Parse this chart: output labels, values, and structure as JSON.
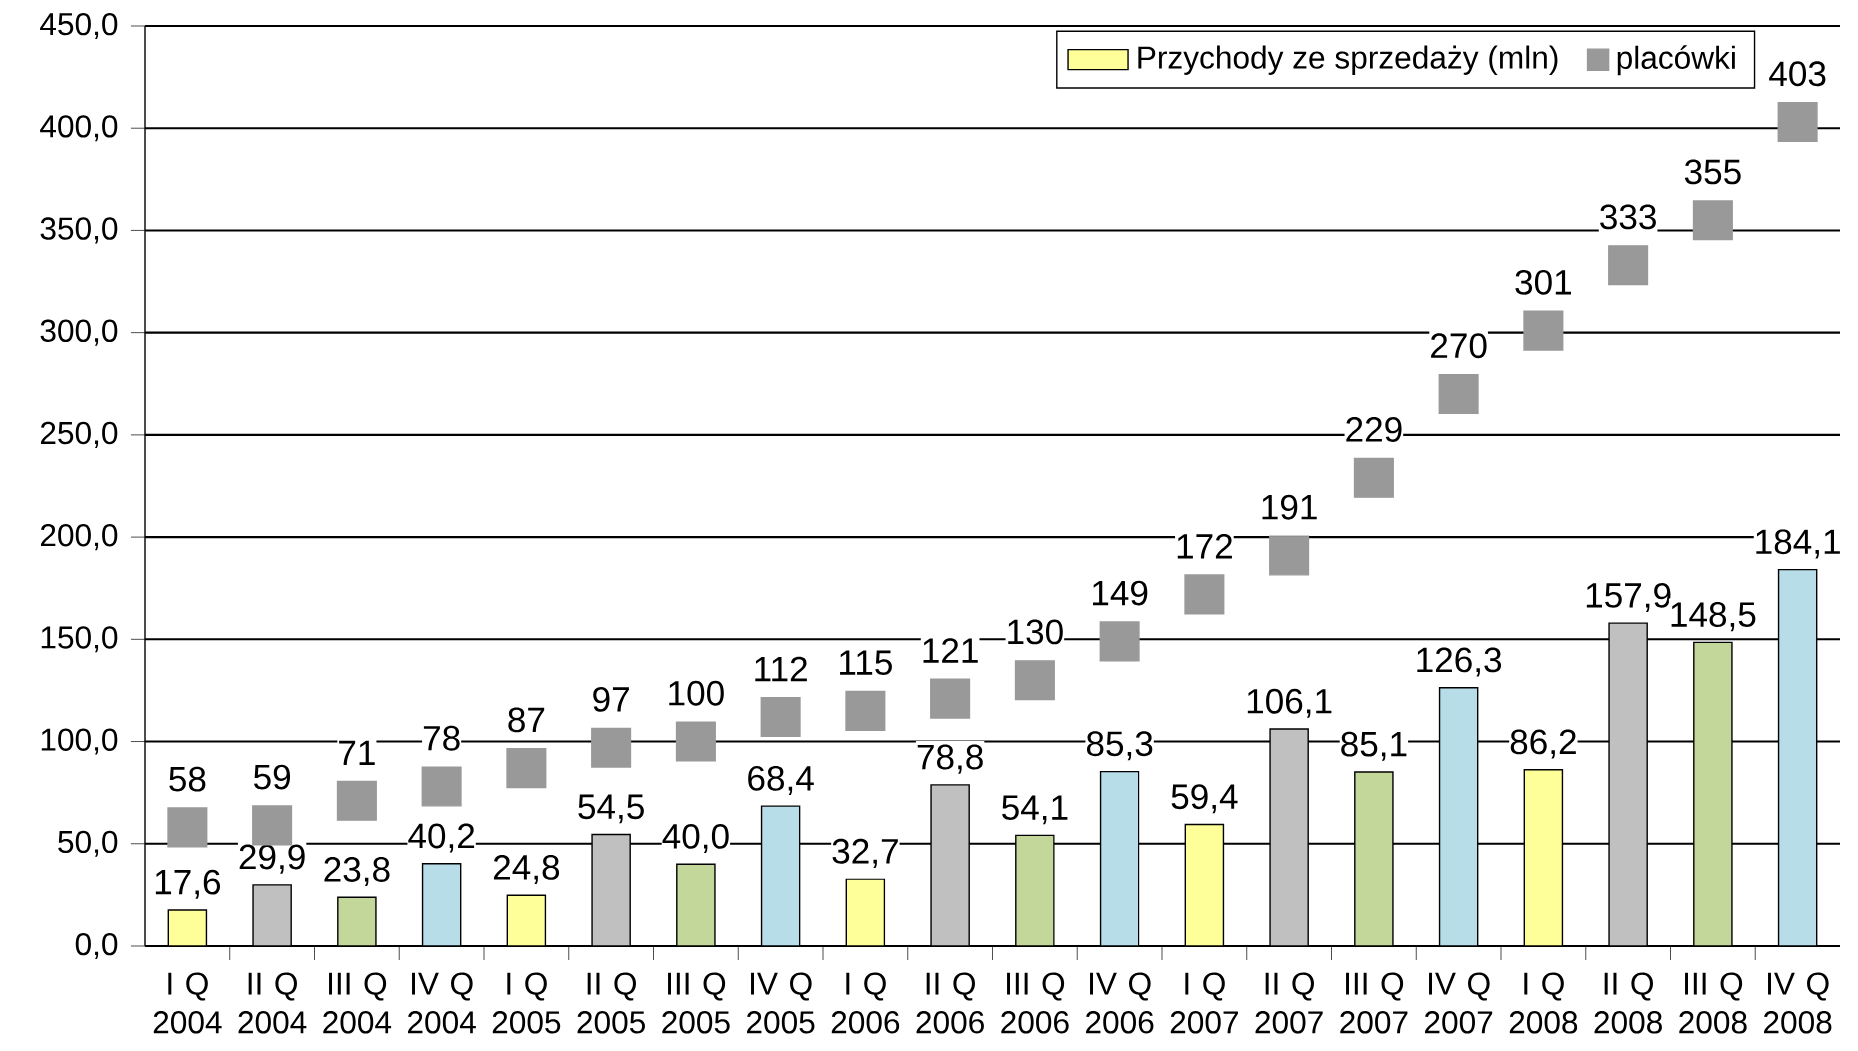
{
  "chart_data": {
    "type": "bar",
    "categories": [
      "I Q 2004",
      "II Q 2004",
      "III Q 2004",
      "IV Q 2004",
      "I Q 2005",
      "II Q 2005",
      "III Q 2005",
      "IV Q 2005",
      "I Q 2006",
      "II Q 2006",
      "III Q 2006",
      "IV Q 2006",
      "I Q 2007",
      "II Q 2007",
      "III Q 2007",
      "IV Q 2007",
      "I Q 2008",
      "II Q 2008",
      "III Q 2008",
      "IV Q 2008"
    ],
    "series": [
      {
        "name": "Przychody ze sprzedaży (mln)",
        "color": "#ffff99",
        "colors": [
          "#ffff99",
          "#c0c0c0",
          "#c4d79b",
          "#b7dde8",
          "#ffff99",
          "#c0c0c0",
          "#c4d79b",
          "#b7dde8",
          "#ffff99",
          "#c0c0c0",
          "#c4d79b",
          "#b7dde8",
          "#ffff99",
          "#c0c0c0",
          "#c4d79b",
          "#b7dde8",
          "#ffff99",
          "#c0c0c0",
          "#c4d79b",
          "#b7dde8"
        ],
        "values": [
          17.6,
          29.9,
          23.8,
          40.2,
          24.8,
          54.5,
          40.0,
          68.4,
          32.7,
          78.8,
          54.1,
          85.3,
          59.4,
          106.1,
          85.1,
          126.3,
          86.2,
          157.9,
          148.5,
          184.1
        ],
        "value_labels": [
          "17,6",
          "29,9",
          "23,8",
          "40,2",
          "24,8",
          "54,5",
          "40,0",
          "68,4",
          "32,7",
          "78,8",
          "54,1",
          "85,3",
          "59,4",
          "106,1",
          "85,1",
          "126,3",
          "86,2",
          "157,9",
          "148,5",
          "184,1"
        ]
      },
      {
        "name": "placówki",
        "type": "scatter",
        "marker": "square",
        "color": "#999999",
        "values": [
          58,
          59,
          71,
          78,
          87,
          97,
          100,
          112,
          115,
          121,
          130,
          149,
          172,
          191,
          229,
          270,
          301,
          333,
          355,
          403
        ],
        "value_labels": [
          "58",
          "59",
          "71",
          "78",
          "87",
          "97",
          "100",
          "112",
          "115",
          "121",
          "130",
          "149",
          "172",
          "191",
          "229",
          "270",
          "301",
          "333",
          "355",
          "403"
        ]
      }
    ],
    "ylim": [
      0,
      450
    ],
    "yticks": [
      {
        "value": 0,
        "label": "0,0"
      },
      {
        "value": 50,
        "label": "50,0"
      },
      {
        "value": 100,
        "label": "100,0"
      },
      {
        "value": 150,
        "label": "150,0"
      },
      {
        "value": 200,
        "label": "200,0"
      },
      {
        "value": 250,
        "label": "250,0"
      },
      {
        "value": 300,
        "label": "300,0"
      },
      {
        "value": 350,
        "label": "350,0"
      },
      {
        "value": 400,
        "label": "400,0"
      },
      {
        "value": 450,
        "label": "450,0"
      }
    ],
    "grid": "y",
    "legend": "top right"
  }
}
